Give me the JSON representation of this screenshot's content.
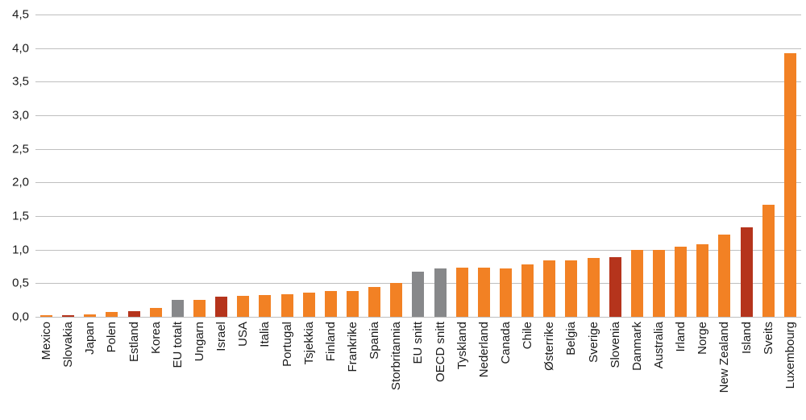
{
  "chart_data": {
    "type": "bar",
    "title": "",
    "xlabel": "",
    "ylabel": "",
    "ylim": [
      0,
      4.5
    ],
    "grid": "horizontal",
    "legend": "none",
    "yticks": [
      {
        "value": 0.0,
        "label": "0,0"
      },
      {
        "value": 0.5,
        "label": "0,5"
      },
      {
        "value": 1.0,
        "label": "1,0"
      },
      {
        "value": 1.5,
        "label": "1,5"
      },
      {
        "value": 2.0,
        "label": "2,0"
      },
      {
        "value": 2.5,
        "label": "2,5"
      },
      {
        "value": 3.0,
        "label": "3,0"
      },
      {
        "value": 3.5,
        "label": "3,5"
      },
      {
        "value": 4.0,
        "label": "4,0"
      },
      {
        "value": 4.5,
        "label": "4,5"
      }
    ],
    "categories": [
      "Mexico",
      "Slovakia",
      "Japan",
      "Polen",
      "Estland",
      "Korea",
      "EU totalt",
      "Ungarn",
      "Israel",
      "USA",
      "Italia",
      "Portugal",
      "Tsjekkia",
      "Finland",
      "Frankrike",
      "Spania",
      "Storbritannia",
      "EU snitt",
      "OECD snitt",
      "Tyskland",
      "Nederland",
      "Canada",
      "Chile",
      "Østerrike",
      "Belgia",
      "Sverige",
      "Slovenia",
      "Danmark",
      "Australia",
      "Irland",
      "Norge",
      "New Zealand",
      "Island",
      "Sveits",
      "Luxembourg"
    ],
    "values": [
      0.02,
      0.03,
      0.04,
      0.07,
      0.09,
      0.13,
      0.25,
      0.25,
      0.3,
      0.31,
      0.33,
      0.34,
      0.36,
      0.38,
      0.39,
      0.44,
      0.5,
      0.67,
      0.72,
      0.73,
      0.73,
      0.72,
      0.78,
      0.84,
      0.84,
      0.88,
      0.89,
      1.0,
      1.0,
      1.05,
      1.08,
      1.22,
      1.33,
      1.67,
      3.92
    ],
    "bar_colors": [
      "orange",
      "darkred",
      "orange",
      "orange",
      "darkred",
      "orange",
      "gray",
      "orange",
      "darkred",
      "orange",
      "orange",
      "orange",
      "orange",
      "orange",
      "orange",
      "orange",
      "orange",
      "gray",
      "gray",
      "orange",
      "orange",
      "orange",
      "orange",
      "orange",
      "orange",
      "orange",
      "darkred",
      "orange",
      "orange",
      "orange",
      "orange",
      "orange",
      "darkred",
      "orange",
      "orange"
    ],
    "colors": {
      "orange": "#F28124",
      "gray": "#87888A",
      "darkred": "#B5341C"
    }
  }
}
